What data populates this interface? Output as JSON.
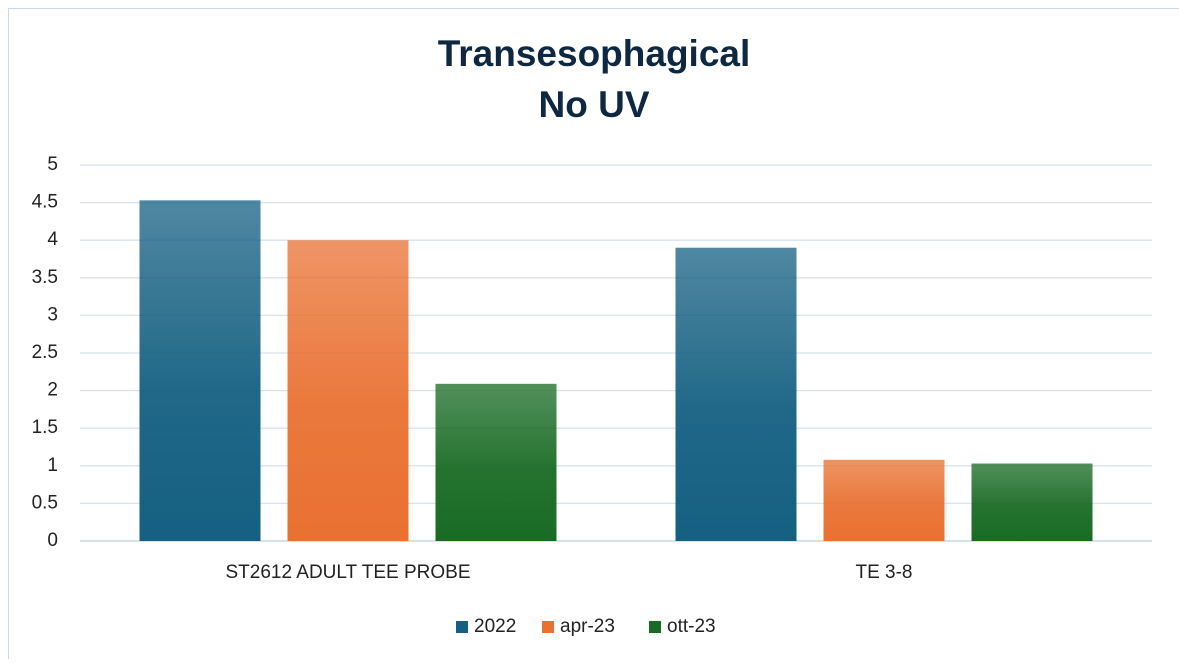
{
  "chart_data": {
    "type": "bar",
    "title": [
      "Transesophagical",
      "No UV"
    ],
    "categories": [
      "ST2612 ADULT TEE PROBE",
      "TE 3-8"
    ],
    "series": [
      {
        "name": "2022",
        "color": "#156082",
        "values": [
          4.53,
          3.9
        ]
      },
      {
        "name": "apr-23",
        "color": "#e97132",
        "values": [
          4.0,
          1.08
        ]
      },
      {
        "name": "ott-23",
        "color": "#196b24",
        "values": [
          2.09,
          1.03
        ]
      }
    ],
    "ylim": [
      0,
      5
    ],
    "yticks": [
      0,
      0.5,
      1,
      1.5,
      2,
      2.5,
      3,
      3.5,
      4,
      4.5,
      5
    ],
    "grid": true,
    "legend": "bottom"
  }
}
